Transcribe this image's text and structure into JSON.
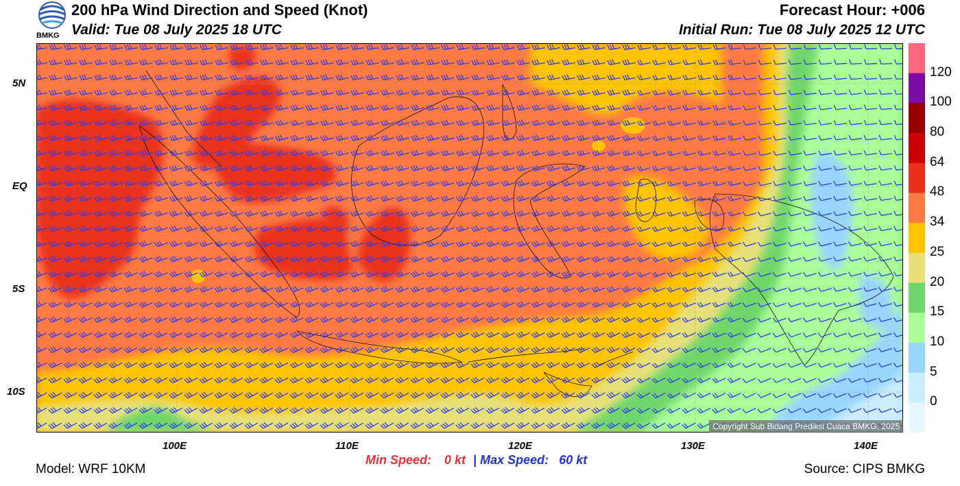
{
  "header": {
    "title": "200 hPa Wind Direction and Speed (Knot)",
    "valid": "Valid: Tue 08 July 2025 18 UTC",
    "forecast_hour": "Forecast Hour: +006",
    "initial_run": "Initial Run: Tue 08 July 2025 12 UTC"
  },
  "logo": {
    "text": "BMKG"
  },
  "map": {
    "lat_labels": [
      "5N",
      "EQ",
      "5S",
      "10S"
    ],
    "lon_labels": [
      "100E",
      "110E",
      "120E",
      "130E",
      "140E"
    ],
    "copyright": "Copyright Sub Bidang Prediksi Cuaca BMKG, 2025"
  },
  "colorbar": {
    "labels": [
      "120",
      "100",
      "80",
      "64",
      "48",
      "34",
      "25",
      "20",
      "15",
      "10",
      "5",
      "0"
    ],
    "colors": [
      "#ff6680",
      "#7b0ca6",
      "#990000",
      "#cc0000",
      "#e8301a",
      "#ff7a45",
      "#ffc400",
      "#e6e07a",
      "#6fd66a",
      "#aaff99",
      "#99d6ff",
      "#cceeff",
      "#e8f6ff"
    ]
  },
  "footer": {
    "model": "Model: WRF 10KM",
    "source": "Source: CIPS BMKG",
    "min_label": "Min Speed:",
    "min_value": "0 kt",
    "separator": "|",
    "max_label": "Max Speed:",
    "max_value": "60 kt"
  }
}
